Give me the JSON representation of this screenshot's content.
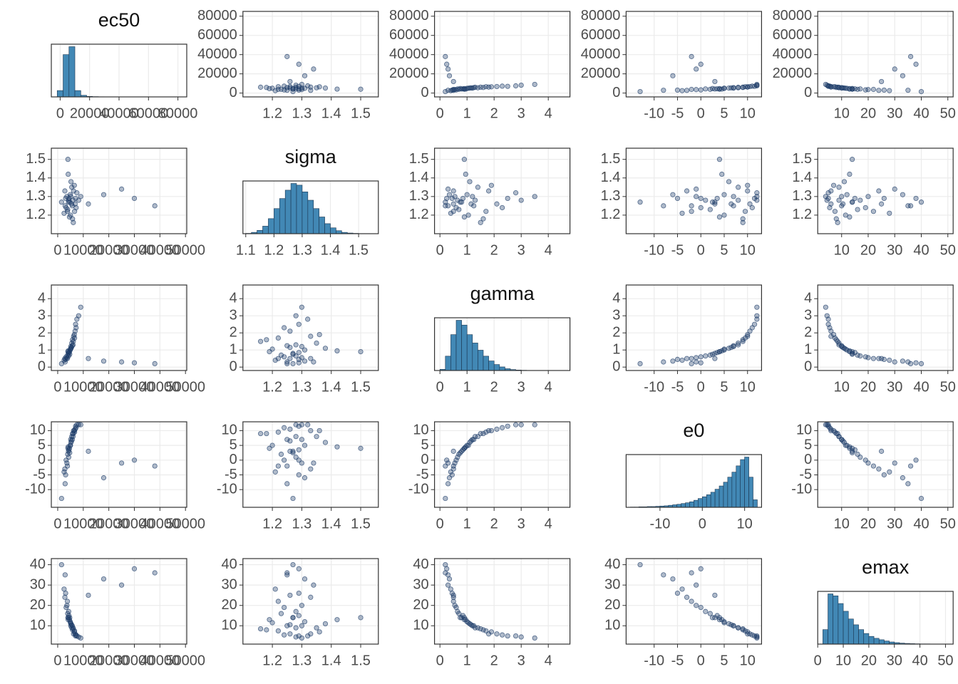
{
  "chart_data": {
    "type": "scatter-matrix",
    "grid": true,
    "point_color": "#1b3a66",
    "hist_color": "#4288b5",
    "variables": [
      {
        "name": "ec50",
        "values": [
          4200,
          5100,
          3800,
          6200,
          2900,
          7000,
          4600,
          5500,
          3300,
          8200,
          4900,
          2500,
          6800,
          5200,
          3900,
          1500,
          7500,
          4400,
          5800,
          25000,
          38000,
          4100,
          6000,
          3600,
          12000,
          5000,
          6500,
          3100,
          7200,
          4700,
          18000,
          5400,
          2800,
          6600,
          4300,
          9000,
          5700,
          30000,
          4000,
          6100
        ],
        "xlim": [
          -2500,
          50500
        ],
        "xticks": [
          0,
          10000,
          20000,
          30000,
          40000,
          50000
        ],
        "ylim": [
          -4000,
          85000
        ],
        "yticks": [
          0,
          20000,
          40000,
          60000,
          80000
        ],
        "hist": {
          "bins": [
            -2000,
            2000,
            6000,
            10000,
            14000,
            18000,
            22000,
            26000,
            30000,
            34000,
            38000,
            42000,
            46000,
            50000,
            54000,
            58000,
            62000,
            66000,
            70000,
            74000,
            78000,
            82000
          ],
          "counts": [
            120,
            800,
            950,
            120,
            30,
            10,
            5,
            3,
            2,
            1,
            1,
            1,
            0,
            0,
            0,
            0,
            1,
            0,
            0,
            1,
            0
          ],
          "xlim": [
            -6000,
            86000
          ],
          "xticks": [
            0,
            20000,
            40000,
            60000,
            80000
          ]
        }
      },
      {
        "name": "sigma",
        "values": [
          1.27,
          1.3,
          1.22,
          1.33,
          1.25,
          1.29,
          1.19,
          1.35,
          1.24,
          1.28,
          1.31,
          1.21,
          1.26,
          1.38,
          1.23,
          1.27,
          1.32,
          1.29,
          1.18,
          1.34,
          1.25,
          1.42,
          1.28,
          1.3,
          1.26,
          1.2,
          1.36,
          1.29,
          1.24,
          1.27,
          1.31,
          1.26,
          1.33,
          1.22,
          1.28,
          1.3,
          1.25,
          1.29,
          1.5,
          1.16
        ],
        "xlim": [
          1.1,
          1.56
        ],
        "xticks": [
          1.2,
          1.3,
          1.4,
          1.5
        ],
        "ylim": [
          1.1,
          1.56
        ],
        "yticks": [
          1.2,
          1.3,
          1.4,
          1.5
        ],
        "hist": {
          "bins": [
            1.1,
            1.12,
            1.14,
            1.16,
            1.18,
            1.2,
            1.22,
            1.24,
            1.26,
            1.28,
            1.3,
            1.32,
            1.34,
            1.36,
            1.38,
            1.4,
            1.42,
            1.44,
            1.46,
            1.48,
            1.5,
            1.52,
            1.54,
            1.56
          ],
          "counts": [
            2,
            8,
            20,
            45,
            90,
            150,
            210,
            260,
            300,
            290,
            250,
            200,
            150,
            100,
            60,
            35,
            18,
            8,
            4,
            2,
            1,
            1,
            0
          ],
          "xlim": [
            1.09,
            1.57
          ],
          "xticks": [
            1.1,
            1.2,
            1.3,
            1.4,
            1.5
          ]
        }
      },
      {
        "name": "gamma",
        "values": [
          0.8,
          1.2,
          0.5,
          1.8,
          0.3,
          2.5,
          0.9,
          1.4,
          0.6,
          3.0,
          1.0,
          0.4,
          2.1,
          1.1,
          0.7,
          0.2,
          2.8,
          0.85,
          1.6,
          0.3,
          0.2,
          0.95,
          1.3,
          0.55,
          0.5,
          1.05,
          1.9,
          0.45,
          2.3,
          0.75,
          0.35,
          1.15,
          0.5,
          1.7,
          0.65,
          3.5,
          1.25,
          0.25,
          0.9,
          1.5
        ],
        "xlim": [
          -0.2,
          4.8
        ],
        "xticks": [
          0,
          1,
          2,
          3,
          4
        ],
        "ylim": [
          -0.2,
          4.8
        ],
        "yticks": [
          0,
          1,
          2,
          3,
          4
        ],
        "hist": {
          "bins": [
            0,
            0.2,
            0.4,
            0.6,
            0.8,
            1,
            1.2,
            1.4,
            1.6,
            1.8,
            2,
            2.2,
            2.4,
            2.6,
            2.8,
            3,
            3.2,
            3.4,
            3.6,
            3.8,
            4,
            4.2,
            4.4,
            4.6,
            4.8
          ],
          "counts": [
            10,
            120,
            300,
            420,
            380,
            300,
            230,
            170,
            120,
            80,
            50,
            30,
            15,
            8,
            4,
            2,
            1,
            1,
            0,
            0,
            0,
            0,
            0,
            1
          ],
          "xlim": [
            -0.2,
            4.8
          ],
          "xticks": [
            0,
            1,
            2,
            3,
            4
          ]
        }
      },
      {
        "name": "e0",
        "values": [
          3,
          7,
          -2,
          10,
          -8,
          11.5,
          4,
          8,
          0,
          12,
          5,
          -4,
          10.5,
          6,
          2,
          -13,
          12,
          3.5,
          9,
          -1,
          -2,
          4.5,
          8,
          -1,
          3,
          5,
          10,
          -5,
          11,
          2.5,
          -6,
          6.5,
          -3,
          9.5,
          1,
          12,
          7,
          0,
          4,
          9
        ],
        "xlim": [
          -16,
          13
        ],
        "xticks": [
          -10,
          -5,
          0,
          5,
          10
        ],
        "ylim": [
          -16,
          13
        ],
        "yticks": [
          -10,
          -5,
          0,
          5,
          10
        ],
        "hist": {
          "bins": [
            -17,
            -16,
            -15,
            -14,
            -13,
            -12,
            -11,
            -10,
            -9,
            -8,
            -7,
            -6,
            -5,
            -4,
            -3,
            -2,
            -1,
            0,
            1,
            2,
            3,
            4,
            5,
            6,
            7,
            8,
            9,
            10,
            11,
            12,
            13
          ],
          "counts": [
            1,
            1,
            2,
            2,
            3,
            3,
            4,
            5,
            6,
            8,
            10,
            12,
            15,
            18,
            22,
            28,
            35,
            42,
            50,
            60,
            72,
            85,
            100,
            120,
            140,
            165,
            190,
            200,
            120,
            30
          ],
          "xlim": [
            -18,
            14
          ],
          "xticks": [
            -10,
            0,
            10
          ]
        }
      },
      {
        "name": "emax",
        "values": [
          14,
          10,
          22,
          6,
          35,
          5,
          13,
          9,
          19,
          4.5,
          12,
          28,
          6,
          11,
          16,
          40,
          5,
          15,
          8,
          30,
          36,
          13,
          9,
          20,
          25,
          11.5,
          7,
          26,
          5.5,
          14,
          33,
          10.5,
          24,
          7.5,
          17,
          4,
          10,
          38,
          14,
          8.5
        ],
        "xlim": [
          1,
          52
        ],
        "xticks": [
          10,
          20,
          30,
          40,
          50
        ],
        "ylim": [
          1,
          43
        ],
        "yticks": [
          10,
          20,
          30,
          40
        ],
        "hist": {
          "bins": [
            2,
            4,
            6,
            8,
            10,
            12,
            14,
            16,
            18,
            20,
            22,
            24,
            26,
            28,
            30,
            32,
            34,
            36,
            38,
            40,
            42,
            44,
            46,
            48,
            50,
            52
          ],
          "counts": [
            150,
            520,
            500,
            420,
            340,
            260,
            200,
            150,
            110,
            80,
            60,
            45,
            32,
            22,
            15,
            10,
            7,
            5,
            3,
            2,
            2,
            1,
            1,
            1,
            1
          ],
          "xlim": [
            0,
            53
          ],
          "xticks": [
            0,
            10,
            20,
            30,
            40,
            50
          ]
        }
      }
    ]
  }
}
